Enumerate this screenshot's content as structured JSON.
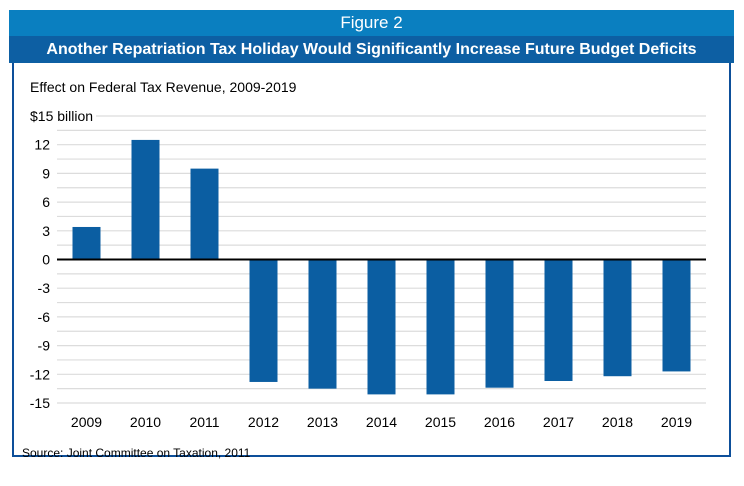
{
  "figure_label": "Figure 2",
  "title": "Another Repatriation Tax Holiday Would Significantly Increase Future Budget Deficits",
  "source": "Source: Joint Committee on Taxation, 2011",
  "colors": {
    "bar": "#0b5ea2",
    "header_top": "#0a7fc0",
    "header_bottom": "#0d5fa3",
    "border": "#0d4f9a"
  },
  "chart_data": {
    "type": "bar",
    "title": "Effect on Federal Tax Revenue, 2009-2019",
    "ylabel": "$15 billion",
    "xlabel": "",
    "categories": [
      "2009",
      "2010",
      "2011",
      "2012",
      "2013",
      "2014",
      "2015",
      "2016",
      "2017",
      "2018",
      "2019"
    ],
    "values": [
      3.4,
      12.5,
      9.5,
      -12.8,
      -13.5,
      -14.1,
      -14.1,
      -13.4,
      -12.7,
      -12.2,
      -11.7
    ],
    "ylim": [
      -15,
      15
    ],
    "yticks": [
      15,
      12,
      9,
      6,
      3,
      0,
      -3,
      -6,
      -9,
      -12,
      -15
    ],
    "ytick_labels": [
      "$15 billion",
      "12",
      "9",
      "6",
      "3",
      "0",
      "-3",
      "-6",
      "-9",
      "-12",
      "-15"
    ],
    "grid": true,
    "legend": "none"
  }
}
